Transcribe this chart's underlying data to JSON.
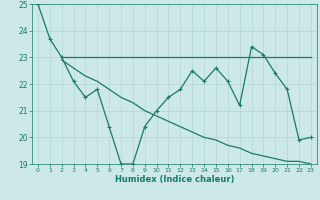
{
  "xlabel": "Humidex (Indice chaleur)",
  "ylabel": "",
  "bg_color": "#cce8e8",
  "grid_color": "#b8d8d8",
  "line_color": "#1a7a6a",
  "xlim": [
    -0.5,
    23.5
  ],
  "ylim": [
    19,
    25
  ],
  "xticks": [
    0,
    1,
    2,
    3,
    4,
    5,
    6,
    7,
    8,
    9,
    10,
    11,
    12,
    13,
    14,
    15,
    16,
    17,
    18,
    19,
    20,
    21,
    22,
    23
  ],
  "yticks": [
    19,
    20,
    21,
    22,
    23,
    24,
    25
  ],
  "line1_x": [
    0,
    1,
    2,
    3,
    4,
    5,
    6,
    7,
    8,
    9,
    10,
    11,
    12,
    13,
    14,
    15,
    16,
    17,
    18,
    19,
    20,
    21,
    22,
    23
  ],
  "line1_y": [
    25,
    23.7,
    23.0,
    22.1,
    21.5,
    21.8,
    20.4,
    19.0,
    19.0,
    20.4,
    21.0,
    21.5,
    21.8,
    22.5,
    22.1,
    22.6,
    22.1,
    21.2,
    23.4,
    23.1,
    22.4,
    21.8,
    19.9,
    20.0
  ],
  "line2_x": [
    2,
    3,
    4,
    5,
    6,
    7,
    8,
    9,
    10,
    11,
    12,
    13,
    14,
    15,
    16,
    17,
    18,
    19,
    20,
    21,
    22,
    23
  ],
  "line2_y": [
    23.0,
    23.0,
    23.0,
    23.0,
    23.0,
    23.0,
    23.0,
    23.0,
    23.0,
    23.0,
    23.0,
    23.0,
    23.0,
    23.0,
    23.0,
    23.0,
    23.0,
    23.0,
    23.0,
    23.0,
    23.0,
    23.0
  ],
  "line3_x": [
    2,
    3,
    4,
    5,
    6,
    7,
    8,
    9,
    10,
    11,
    12,
    13,
    14,
    15,
    16,
    17,
    18,
    19,
    20,
    21,
    22,
    23
  ],
  "line3_y": [
    22.9,
    22.6,
    22.3,
    22.1,
    21.8,
    21.5,
    21.3,
    21.0,
    20.8,
    20.6,
    20.4,
    20.2,
    20.0,
    19.9,
    19.7,
    19.6,
    19.4,
    19.3,
    19.2,
    19.1,
    19.1,
    19.0
  ]
}
